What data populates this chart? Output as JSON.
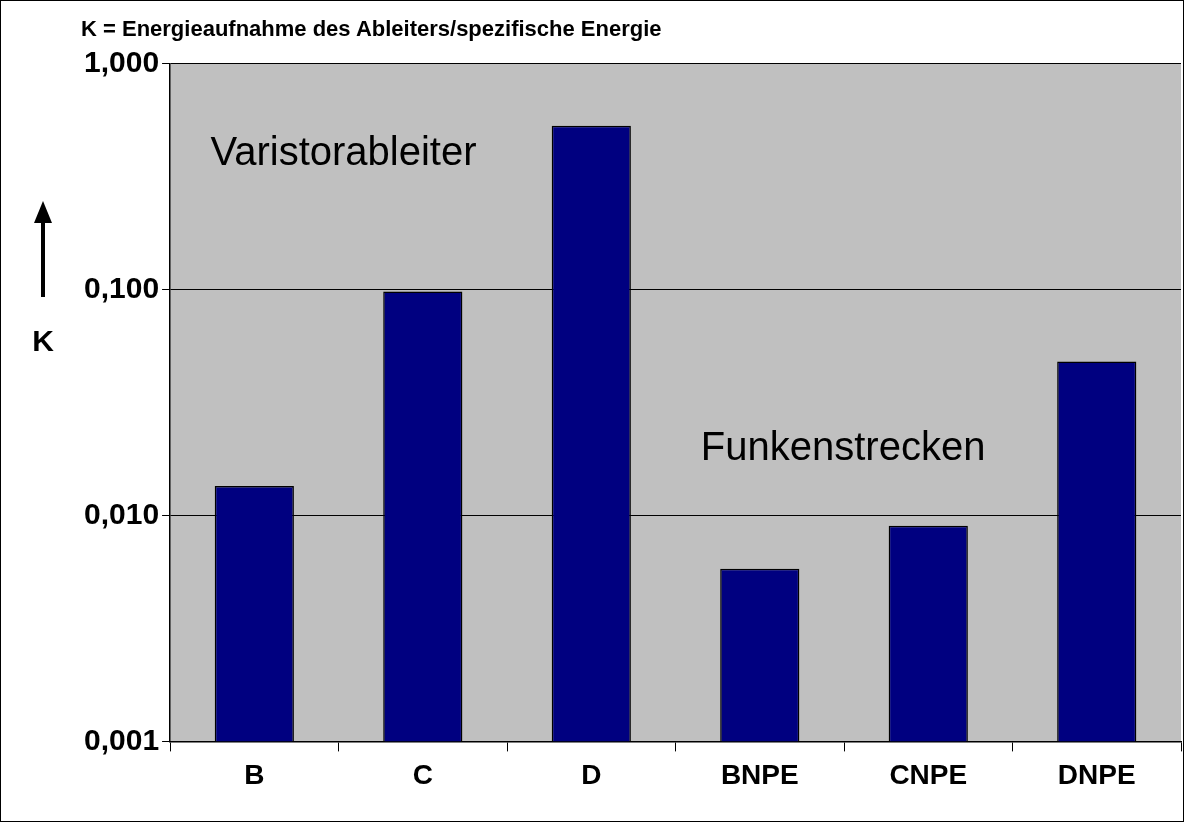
{
  "chart_data": {
    "type": "bar",
    "title": "K = Energieaufnahme des Ableiters/spezifische Energie",
    "ylabel": "K",
    "categories": [
      "B",
      "C",
      "D",
      "BNPE",
      "CNPE",
      "DNPE"
    ],
    "values": [
      0.0135,
      0.098,
      0.53,
      0.0058,
      0.009,
      0.048
    ],
    "color": "#000080",
    "log": "y",
    "ylim": [
      0.001,
      1
    ],
    "yticks": [
      {
        "value": 0.001,
        "label": "0,001"
      },
      {
        "value": 0.01,
        "label": "0,010"
      },
      {
        "value": 0.1,
        "label": "0,100"
      },
      {
        "value": 1,
        "label": "1,000"
      }
    ],
    "grid": "y",
    "legend": false,
    "annotations": [
      "Varistorableiter",
      "Funkenstrecken"
    ]
  }
}
